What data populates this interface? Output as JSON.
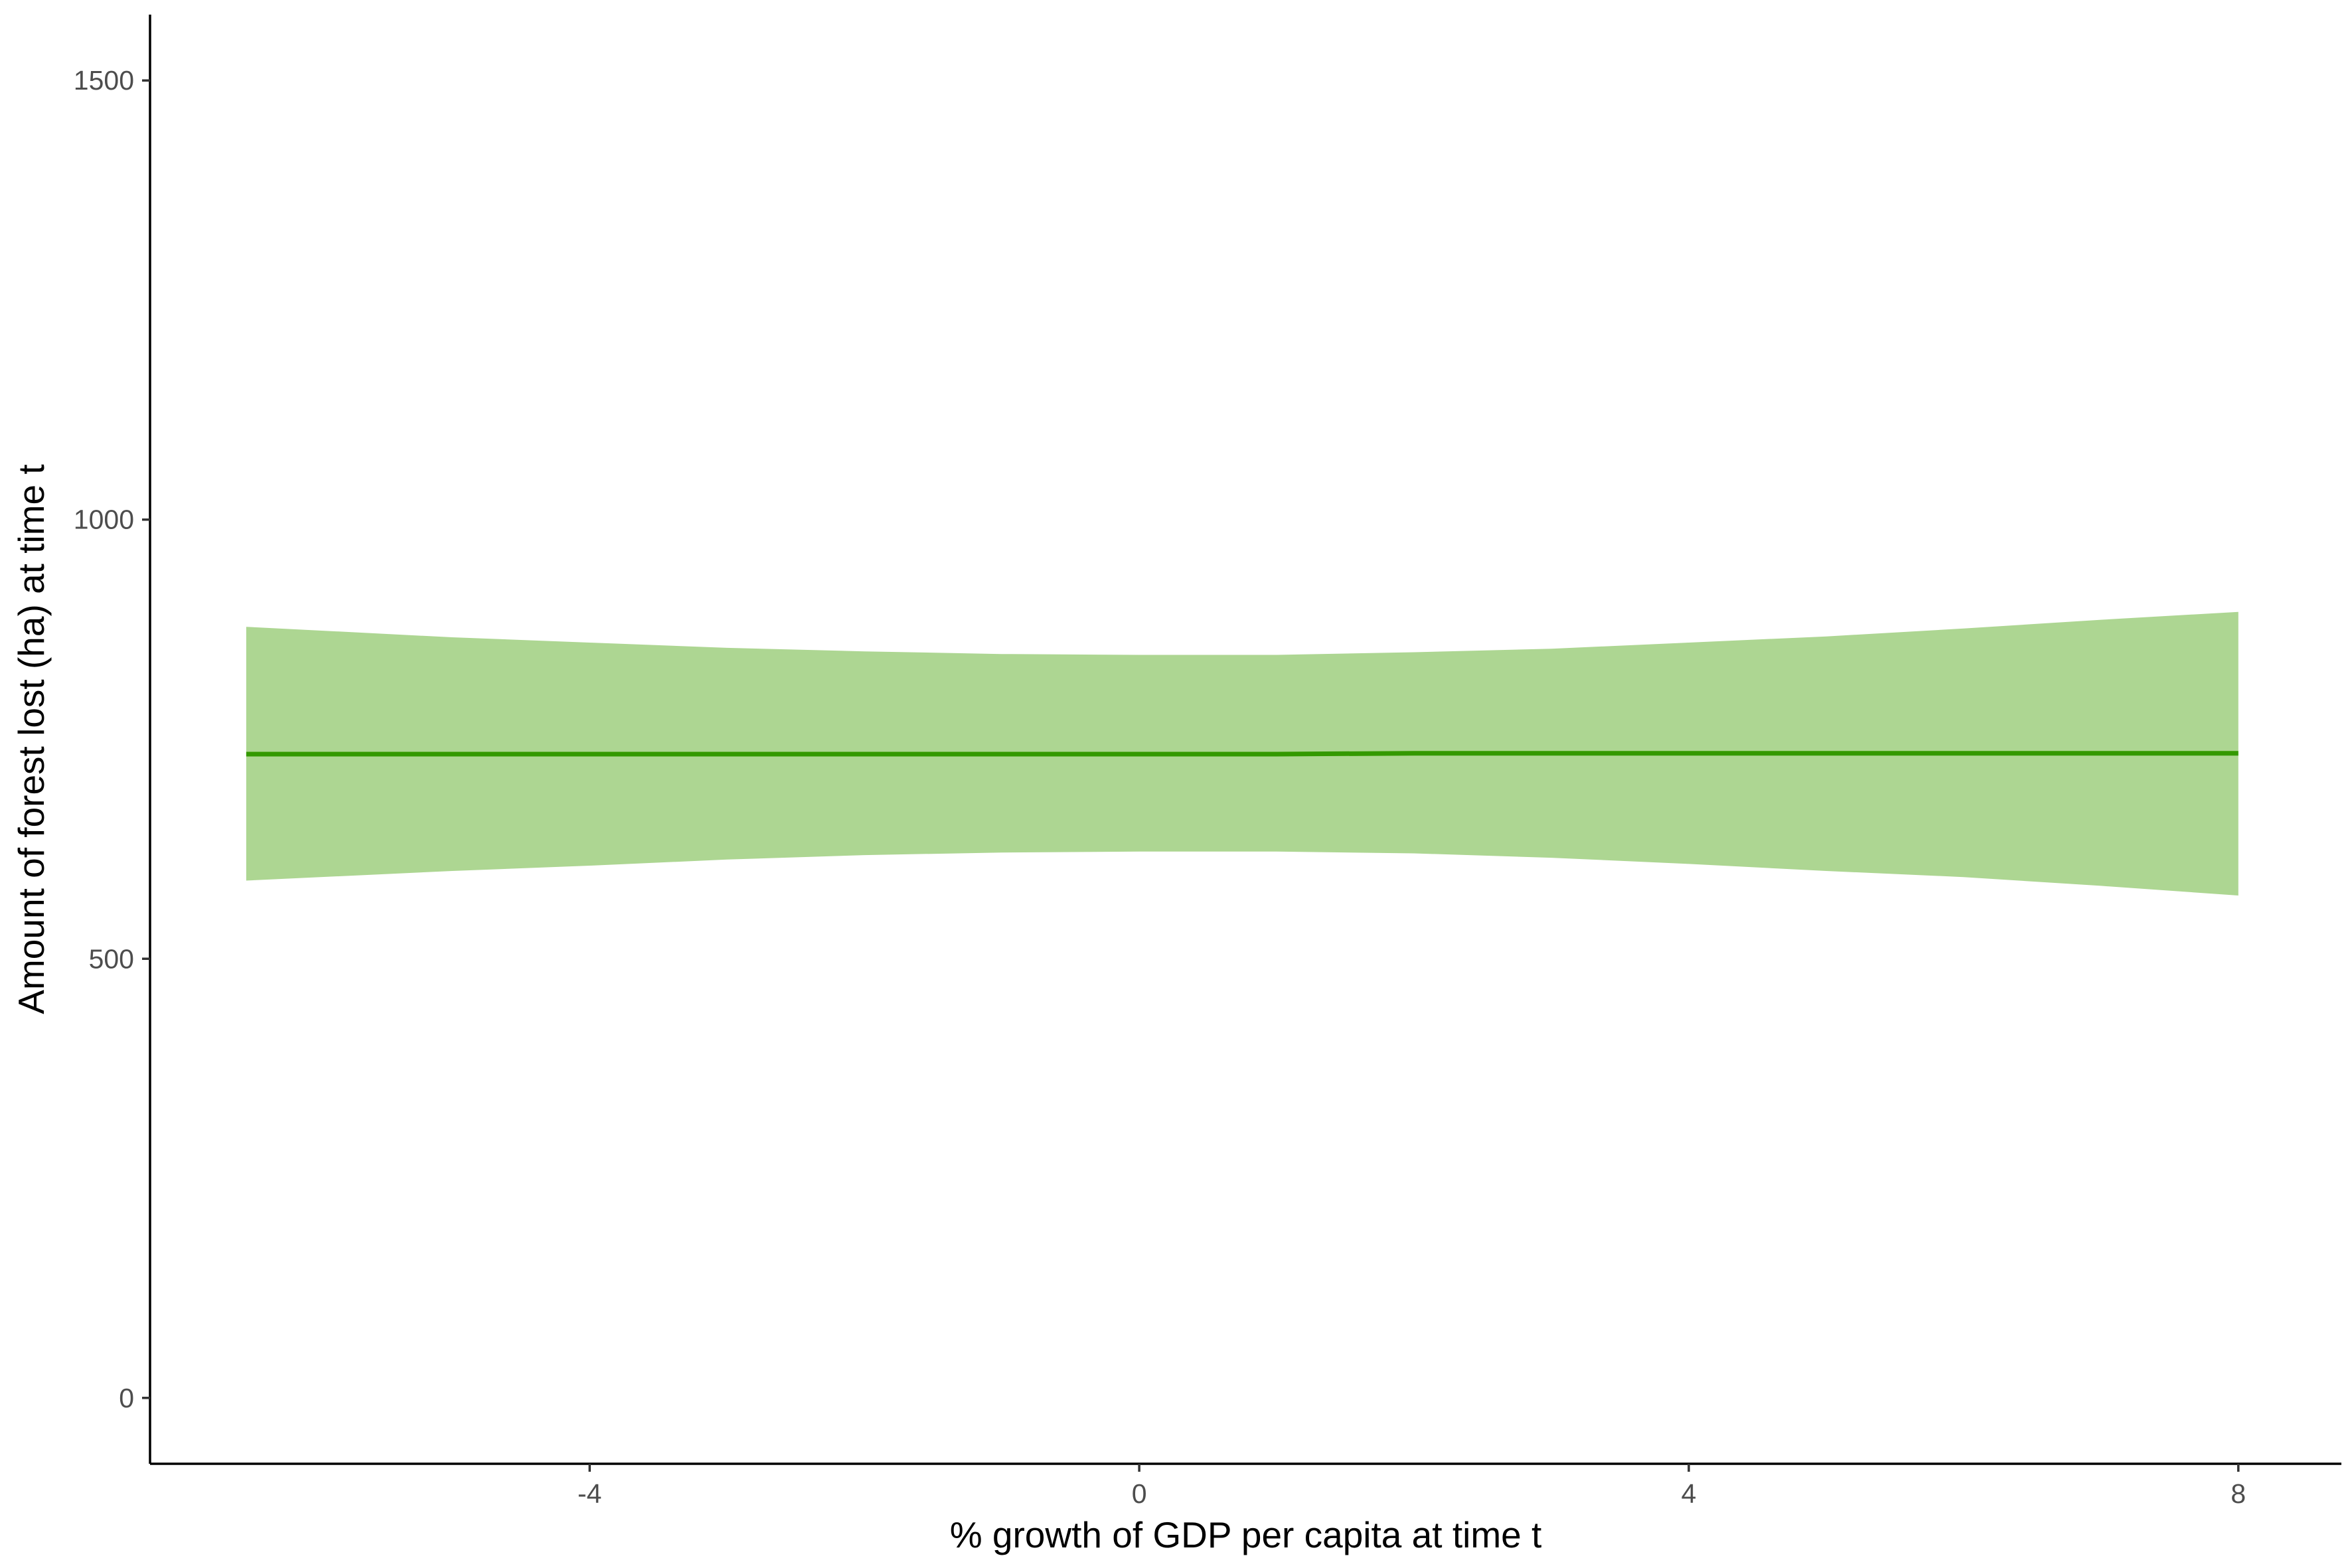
{
  "chart_data": {
    "type": "line",
    "title": "",
    "xlabel": "% growth of GDP per capita at time t",
    "ylabel": "Amount of forest lost (ha) at time t",
    "xlim": [
      -7.2,
      8.75
    ],
    "ylim": [
      -75,
      1575
    ],
    "x_ticks": [
      -4,
      0,
      4,
      8
    ],
    "y_ticks": [
      0,
      500,
      1000,
      1500
    ],
    "grid": false,
    "legend": "none",
    "line_color": "#339900",
    "ribbon_color": "#99cc77",
    "series": [
      {
        "x": [
          -6.5,
          -5,
          -4,
          -3,
          -2,
          -1,
          0,
          1,
          2,
          3,
          4,
          5,
          6,
          7,
          8
        ],
        "y": [
          733,
          733,
          733,
          733,
          733,
          733,
          733,
          733,
          734,
          734,
          734,
          734,
          734,
          734,
          734
        ],
        "lower": [
          589,
          600,
          606,
          613,
          618,
          621,
          622,
          622,
          620,
          615,
          608,
          600,
          593,
          583,
          572
        ],
        "upper": [
          878,
          866,
          860,
          854,
          850,
          847,
          846,
          846,
          849,
          853,
          860,
          867,
          876,
          886,
          895
        ]
      }
    ]
  }
}
